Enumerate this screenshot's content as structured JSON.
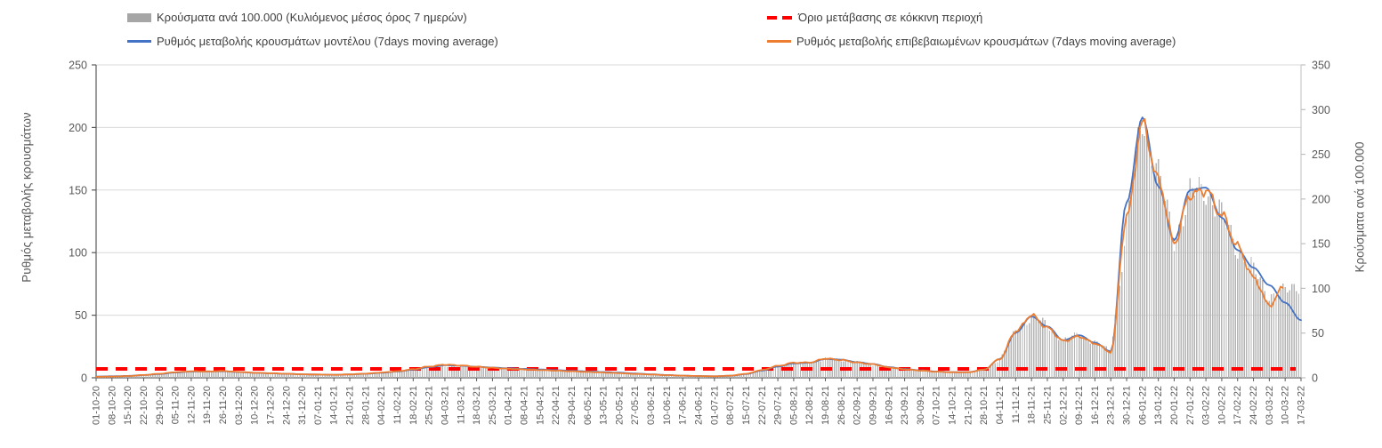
{
  "legend": {
    "items": [
      {
        "id": "cases_bars",
        "label": "Κρούσματα ανά 100.000 (Κυλιόμενος μέσος όρος 7 ημερών)",
        "color": "#a6a6a6",
        "swatch": "bar"
      },
      {
        "id": "model_rate",
        "label": "Ρυθμός μεταβολής κρουσμάτων μοντέλου (7days moving average)",
        "color": "#4472c4",
        "swatch": "line"
      },
      {
        "id": "red_threshold",
        "label": "Όριο μετάβασης σε κόκκινη περιοχή",
        "color": "#ff0000",
        "swatch": "dash"
      },
      {
        "id": "confirmed_rate",
        "label": "Ρυθμός μεταβολής επιβεβαιωμένων κρουσμάτων (7days moving average)",
        "color": "#ed7d31",
        "swatch": "line"
      }
    ]
  },
  "chart_data": {
    "type": "bar+line combo, dual y-axis, weekly-labelled daily series",
    "title": "",
    "grid": true,
    "legend_position": "top",
    "left_axis": {
      "label": "Ρυθμός μεταβολής κρουσμάτων",
      "min": 0,
      "max": 250,
      "ticks": [
        0,
        50,
        100,
        150,
        200,
        250
      ]
    },
    "right_axis": {
      "label": "Κρούσματα ανά 100.000",
      "min": 0,
      "max": 350,
      "ticks": [
        0,
        50,
        100,
        150,
        200,
        250,
        300,
        350
      ]
    },
    "threshold": {
      "name": "Όριο μετάβασης σε κόκκινη περιοχή",
      "axis": "right",
      "value": 10,
      "color": "#ff0000",
      "style": "dashed"
    },
    "categories": [
      "01-10-20",
      "08-10-20",
      "15-10-20",
      "22-10-20",
      "29-10-20",
      "05-11-20",
      "12-11-20",
      "19-11-20",
      "26-11-20",
      "03-12-20",
      "10-12-20",
      "17-12-20",
      "24-12-20",
      "31-12-20",
      "07-01-21",
      "14-01-21",
      "21-01-21",
      "28-01-21",
      "04-02-21",
      "11-02-21",
      "18-02-21",
      "25-02-21",
      "04-03-21",
      "11-03-21",
      "18-03-21",
      "25-03-21",
      "01-04-21",
      "08-04-21",
      "15-04-21",
      "22-04-21",
      "29-04-21",
      "06-05-21",
      "13-05-21",
      "20-05-21",
      "27-05-21",
      "03-06-21",
      "10-06-21",
      "17-06-21",
      "24-06-21",
      "01-07-21",
      "08-07-21",
      "15-07-21",
      "22-07-21",
      "29-07-21",
      "05-08-21",
      "12-08-21",
      "19-08-21",
      "26-08-21",
      "02-09-21",
      "09-09-21",
      "16-09-21",
      "23-09-21",
      "30-09-21",
      "07-10-21",
      "14-10-21",
      "21-10-21",
      "28-10-21",
      "04-11-21",
      "11-11-21",
      "18-11-21",
      "25-11-21",
      "02-12-21",
      "09-12-21",
      "16-12-21",
      "23-12-21",
      "30-12-21",
      "06-01-22",
      "13-01-22",
      "20-01-22",
      "27-01-22",
      "03-02-22",
      "10-02-22",
      "17-02-22",
      "24-02-22",
      "03-03-22",
      "10-03-22",
      "17-03-22"
    ],
    "series": [
      {
        "name": "Κρούσματα ανά 100.000 (Κυλιόμενος μέσος όρος 7 ημερών)",
        "type": "bar",
        "axis": "right",
        "color": "#b4b4b4",
        "values": [
          1.5,
          2,
          2.5,
          3.5,
          4.5,
          6.5,
          7.5,
          7.3,
          7.8,
          6.8,
          6,
          5.4,
          4.8,
          4.2,
          3.9,
          3.6,
          4,
          4.8,
          6,
          7.5,
          9.5,
          12,
          13,
          12.5,
          11.5,
          11,
          10.5,
          10,
          9.2,
          8.5,
          7.8,
          7,
          6.3,
          5.5,
          4.7,
          3.9,
          3.1,
          2.5,
          2.1,
          1.8,
          2.4,
          4.5,
          8.7,
          12.6,
          16,
          17,
          21,
          20,
          17.5,
          15,
          12,
          9.5,
          8,
          7,
          6.2,
          6.2,
          9,
          21,
          52,
          70,
          58,
          42,
          48,
          40,
          29,
          170,
          295,
          226,
          155,
          205,
          212,
          181,
          145,
          120,
          92,
          96,
          106
        ]
      },
      {
        "name": "Ρυθμός μεταβολής κρουσμάτων μοντέλου (7days moving average)",
        "type": "line",
        "axis": "left",
        "color": "#4472c4",
        "values": [
          1,
          1.2,
          1.5,
          2.2,
          3,
          4.2,
          5,
          5,
          5.2,
          4.6,
          4,
          3.6,
          3.2,
          2.8,
          2.6,
          2.4,
          2.7,
          3.2,
          4,
          5,
          6.5,
          8.5,
          10,
          9.6,
          8.8,
          8.2,
          7.6,
          7.1,
          6.6,
          6.1,
          5.6,
          5.1,
          4.6,
          4.1,
          3.4,
          2.8,
          2.2,
          1.7,
          1.4,
          1.2,
          1.6,
          3,
          5.8,
          9,
          11.5,
          12,
          15,
          14.5,
          12.5,
          11,
          8.5,
          7,
          6,
          5,
          4.5,
          4.5,
          6.5,
          15,
          36,
          49,
          41,
          30,
          34,
          28,
          21,
          140,
          208,
          153,
          110,
          150,
          152,
          128,
          102,
          88,
          74,
          60,
          46
        ]
      },
      {
        "name": "Ρυθμός μεταβολής επιβεβαιωμένων κρουσμάτων (7days moving average)",
        "type": "line",
        "axis": "left",
        "color": "#ed7d31",
        "values": [
          0.8,
          1,
          1.4,
          2.2,
          3.2,
          4.5,
          5.2,
          5,
          5.4,
          4.7,
          4,
          3.6,
          3.2,
          2.8,
          2.6,
          2.4,
          2.7,
          3.3,
          4.2,
          5.2,
          6.8,
          9,
          10.5,
          9.8,
          8.8,
          8,
          7.2,
          6.7,
          6.2,
          5.7,
          5.2,
          4.7,
          4.2,
          3.7,
          3.1,
          2.6,
          2.1,
          1.7,
          1.4,
          1.2,
          1.7,
          3.2,
          6.2,
          9.5,
          12,
          12.2,
          15.3,
          14.2,
          12.2,
          10.8,
          8.3,
          6.8,
          5.8,
          4.9,
          4.4,
          4.4,
          6.5,
          15,
          37,
          50,
          40,
          29.5,
          33,
          27.5,
          20.5,
          128,
          203,
          158,
          108,
          146,
          150,
          130,
          105,
          80,
          58,
          74,
          null
        ]
      }
    ]
  },
  "colors": {
    "grid": "#d9d9d9",
    "axis_dark": "#595959",
    "axis_light": "#bfbfbf",
    "tick_label": "#595959"
  }
}
